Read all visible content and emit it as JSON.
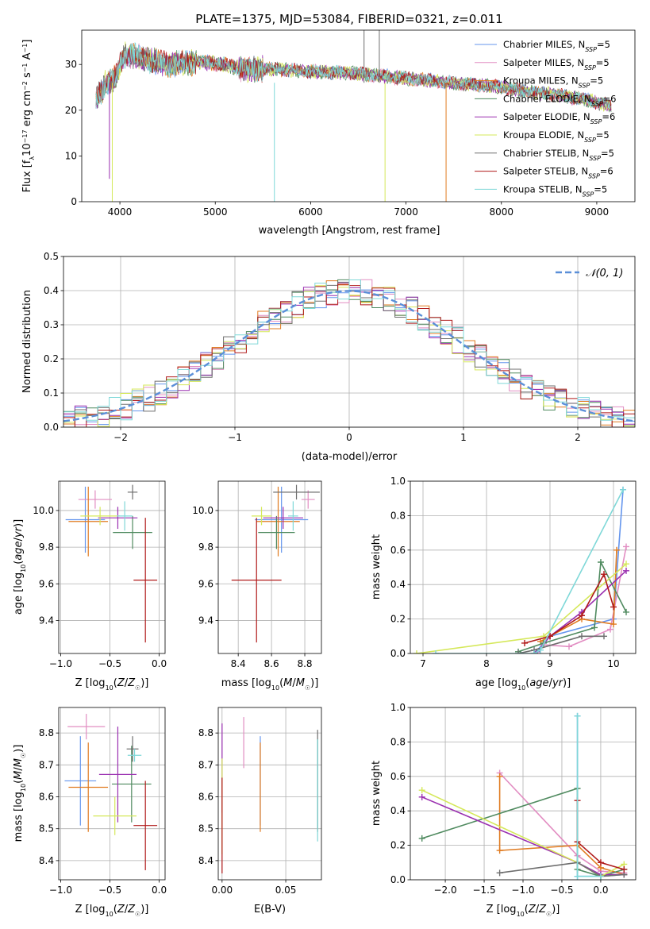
{
  "title": "PLATE=1375, MJD=53084, FIBERID=0321, z=0.011",
  "colors": {
    "Chabrier MILES": "#6495ed",
    "Salpeter MILES": "#e28dc2",
    "Kroupa MILES": "#e07b20",
    "Chabrier ELODIE": "#4f8a5f",
    "Salpeter ELODIE": "#9a2fb0",
    "Kroupa ELODIE": "#d5e85a",
    "Chabrier STELIB": "#6e6e6e",
    "Salpeter STELIB": "#b01a1a",
    "Kroupa STELIB": "#7fd8d8"
  },
  "chart_data": [
    {
      "id": "spectrum",
      "type": "line",
      "title": "PLATE=1375, MJD=53084, FIBERID=0321, z=0.011",
      "xlabel": "wavelength [Angstrom, rest frame]",
      "ylabel": "Flux [f_λ 10^-17 erg cm^-2 s^-1 A^-1]",
      "xlim": [
        3600,
        9400
      ],
      "ylim": [
        0,
        37.5
      ],
      "xticks": [
        4000,
        5000,
        6000,
        7000,
        8000,
        9000
      ],
      "yticks": [
        0,
        10,
        20,
        30
      ],
      "grid": false,
      "legend_position": "top-right",
      "legend": [
        "Chabrier MILES, N_SSP=5",
        "Salpeter MILES, N_SSP=5",
        "Kroupa MILES, N_SSP=5",
        "Chabrier ELODIE, N_SSP=6",
        "Salpeter ELODIE, N_SSP=6",
        "Kroupa ELODIE, N_SSP=5",
        "Chabrier STELIB, N_SSP=5",
        "Salpeter STELIB, N_SSP=6",
        "Kroupa STELIB, N_SSP=5"
      ],
      "continuum": {
        "x": [
          3750,
          3850,
          3950,
          4050,
          4150,
          4300,
          4500,
          4700,
          4900,
          5100,
          5300,
          5600,
          6000,
          6500,
          7000,
          7500,
          8000,
          8300,
          8600,
          8900,
          9150
        ],
        "y": [
          22,
          26,
          27,
          32,
          32,
          31,
          30,
          30.5,
          30.5,
          30,
          29,
          29,
          28.5,
          28,
          27,
          26,
          25,
          24,
          23.5,
          23,
          22
        ]
      }
    },
    {
      "id": "residuals",
      "type": "step",
      "xlabel": "(data-model)/error",
      "ylabel": "Normed distribution",
      "xlim": [
        -2.5,
        2.5
      ],
      "ylim": [
        0,
        0.5
      ],
      "xticks": [
        -2,
        -1,
        0,
        1,
        2
      ],
      "yticks": [
        0.0,
        0.1,
        0.2,
        0.3,
        0.4,
        0.5
      ],
      "grid": true,
      "legend_position": "top-right",
      "legend": [
        "𝒩(0, 1)"
      ],
      "reference": "normal(0,1)"
    },
    {
      "id": "age_vs_Z",
      "type": "errorbar",
      "xlabel": "Z [log10(Z/Z☉)]",
      "ylabel": "age [log10(age/yr)]",
      "xlim": [
        -1.02,
        0.06
      ],
      "ylim": [
        9.22,
        10.16
      ],
      "xticks": [
        -1.0,
        -0.5,
        0.0
      ],
      "yticks": [
        9.4,
        9.6,
        9.8,
        10.0
      ],
      "grid": true,
      "points": [
        {
          "model": "Chabrier MILES",
          "x": -0.75,
          "xerr": 0.2,
          "y": 9.95,
          "yerr": 0.18
        },
        {
          "model": "Salpeter MILES",
          "x": -0.65,
          "xerr": 0.17,
          "y": 10.06,
          "yerr": 0.05
        },
        {
          "model": "Kroupa MILES",
          "x": -0.72,
          "xerr": 0.2,
          "y": 9.94,
          "yerr": 0.19
        },
        {
          "model": "Chabrier ELODIE",
          "x": -0.27,
          "xerr": 0.2,
          "y": 9.88,
          "yerr": 0.09
        },
        {
          "model": "Salpeter ELODIE",
          "x": -0.42,
          "xerr": 0.2,
          "y": 9.96,
          "yerr": 0.06
        },
        {
          "model": "Kroupa ELODIE",
          "x": -0.6,
          "xerr": 0.2,
          "y": 9.97,
          "yerr": 0.05
        },
        {
          "model": "Chabrier STELIB",
          "x": -0.27,
          "xerr": 0.05,
          "y": 10.1,
          "yerr": 0.04
        },
        {
          "model": "Salpeter STELIB",
          "x": -0.14,
          "xerr": 0.12,
          "y": 9.62,
          "yerr": 0.34
        },
        {
          "model": "Kroupa STELIB",
          "x": -0.35,
          "xerr": 0.08,
          "y": 9.97,
          "yerr": 0.08
        }
      ]
    },
    {
      "id": "age_vs_mass",
      "type": "errorbar",
      "xlabel": "mass [log10(M/M☉)]",
      "ylabel": "",
      "xlim": [
        8.28,
        8.9
      ],
      "ylim": [
        9.22,
        10.16
      ],
      "xticks": [
        8.4,
        8.6,
        8.8
      ],
      "yticks": [
        9.4,
        9.6,
        9.8,
        10.0
      ],
      "grid": true,
      "points": [
        {
          "model": "Chabrier MILES",
          "x": 8.66,
          "xerr": 0.16,
          "y": 9.95,
          "yerr": 0.18
        },
        {
          "model": "Salpeter MILES",
          "x": 8.82,
          "xerr": 0.04,
          "y": 10.06,
          "yerr": 0.05
        },
        {
          "model": "Kroupa MILES",
          "x": 8.64,
          "xerr": 0.13,
          "y": 9.94,
          "yerr": 0.19
        },
        {
          "model": "Chabrier ELODIE",
          "x": 8.63,
          "xerr": 0.11,
          "y": 9.88,
          "yerr": 0.09
        },
        {
          "model": "Salpeter ELODIE",
          "x": 8.67,
          "xerr": 0.12,
          "y": 9.96,
          "yerr": 0.06
        },
        {
          "model": "Kroupa ELODIE",
          "x": 8.54,
          "xerr": 0.06,
          "y": 9.97,
          "yerr": 0.05
        },
        {
          "model": "Chabrier STELIB",
          "x": 8.75,
          "xerr": 0.14,
          "y": 10.1,
          "yerr": 0.04
        },
        {
          "model": "Salpeter STELIB",
          "x": 8.51,
          "xerr": 0.15,
          "y": 9.62,
          "yerr": 0.34
        },
        {
          "model": "Kroupa STELIB",
          "x": 8.73,
          "xerr": 0.03,
          "y": 9.97,
          "yerr": 0.08
        }
      ]
    },
    {
      "id": "weight_vs_age",
      "type": "line",
      "xlabel": "age [log10(age/yr)]",
      "ylabel": "mass weight",
      "xlim": [
        6.8,
        10.35
      ],
      "ylim": [
        0,
        1.0
      ],
      "xticks": [
        7,
        8,
        9,
        10
      ],
      "yticks": [
        0.0,
        0.2,
        0.4,
        0.6,
        0.8,
        1.0
      ],
      "grid": true,
      "series": [
        {
          "model": "Chabrier MILES",
          "x": [
            8.75,
            9.0,
            10.0,
            10.15
          ],
          "y": [
            0.0,
            0.1,
            0.2,
            0.95
          ]
        },
        {
          "model": "Salpeter MILES",
          "x": [
            8.9,
            9.3,
            9.95,
            10.2
          ],
          "y": [
            0.05,
            0.04,
            0.14,
            0.62
          ]
        },
        {
          "model": "Kroupa MILES",
          "x": [
            8.85,
            9.0,
            9.5,
            10.0,
            10.05
          ],
          "y": [
            0.07,
            0.1,
            0.2,
            0.17,
            0.6
          ]
        },
        {
          "model": "Chabrier ELODIE",
          "x": [
            8.5,
            8.9,
            9.7,
            9.8,
            10.2
          ],
          "y": [
            0.01,
            0.06,
            0.15,
            0.53,
            0.24
          ]
        },
        {
          "model": "Salpeter ELODIE",
          "x": [
            8.8,
            9.0,
            9.5,
            10.2
          ],
          "y": [
            0.01,
            0.1,
            0.24,
            0.48
          ]
        },
        {
          "model": "Kroupa ELODIE",
          "x": [
            6.9,
            8.9,
            10.2
          ],
          "y": [
            0.0,
            0.1,
            0.52
          ]
        },
        {
          "model": "Chabrier STELIB",
          "x": [
            8.5,
            8.75,
            9.5,
            9.85
          ],
          "y": [
            0.0,
            0.02,
            0.1,
            0.1
          ]
        },
        {
          "model": "Salpeter STELIB",
          "x": [
            8.6,
            9.0,
            9.5,
            9.85,
            10.0
          ],
          "y": [
            0.06,
            0.1,
            0.22,
            0.46,
            0.27
          ]
        },
        {
          "model": "Kroupa STELIB",
          "x": [
            7.2,
            8.75,
            8.85,
            10.15
          ],
          "y": [
            0.0,
            0.0,
            0.02,
            0.95
          ]
        }
      ]
    },
    {
      "id": "mass_vs_Z",
      "type": "errorbar",
      "xlabel": "Z [log10(Z/Z☉)]",
      "ylabel": "mass [log10(M/M☉)]",
      "xlim": [
        -1.02,
        0.06
      ],
      "ylim": [
        8.34,
        8.88
      ],
      "xticks": [
        -1.0,
        -0.5,
        0.0
      ],
      "yticks": [
        8.4,
        8.5,
        8.6,
        8.7,
        8.8
      ],
      "grid": true,
      "points": [
        {
          "model": "Chabrier MILES",
          "x": -0.8,
          "xerr": 0.16,
          "y": 8.65,
          "yerr": 0.14
        },
        {
          "model": "Salpeter MILES",
          "x": -0.74,
          "xerr": 0.19,
          "y": 8.82,
          "yerr": 0.04
        },
        {
          "model": "Kroupa MILES",
          "x": -0.72,
          "xerr": 0.2,
          "y": 8.63,
          "yerr": 0.14
        },
        {
          "model": "Chabrier ELODIE",
          "x": -0.28,
          "xerr": 0.2,
          "y": 8.64,
          "yerr": 0.12
        },
        {
          "model": "Salpeter ELODIE",
          "x": -0.42,
          "xerr": 0.19,
          "y": 8.67,
          "yerr": 0.15
        },
        {
          "model": "Kroupa ELODIE",
          "x": -0.45,
          "xerr": 0.22,
          "y": 8.54,
          "yerr": 0.06
        },
        {
          "model": "Chabrier STELIB",
          "x": -0.27,
          "xerr": 0.06,
          "y": 8.75,
          "yerr": 0.04
        },
        {
          "model": "Salpeter STELIB",
          "x": -0.14,
          "xerr": 0.12,
          "y": 8.51,
          "yerr": 0.14
        },
        {
          "model": "Kroupa STELIB",
          "x": -0.25,
          "xerr": 0.07,
          "y": 8.73,
          "yerr": 0.02
        }
      ]
    },
    {
      "id": "mass_vs_ebv",
      "type": "errorbar",
      "xlabel": "E(B-V)",
      "ylabel": "",
      "xlim": [
        -0.003,
        0.078
      ],
      "ylim": [
        8.34,
        8.88
      ],
      "xticks": [
        0.0,
        0.05
      ],
      "yticks": [
        8.4,
        8.5,
        8.6,
        8.7,
        8.8
      ],
      "grid": true,
      "points": [
        {
          "model": "Chabrier MILES",
          "x": 0.03,
          "y": 8.65,
          "yerr": 0.14
        },
        {
          "model": "Salpeter MILES",
          "x": 0.017,
          "y": 8.77,
          "yerr": 0.08
        },
        {
          "model": "Kroupa MILES",
          "x": 0.03,
          "y": 8.63,
          "yerr": 0.14
        },
        {
          "model": "Chabrier ELODIE",
          "x": 0.075,
          "y": 8.64,
          "yerr": 0.14
        },
        {
          "model": "Salpeter ELODIE",
          "x": 0.0,
          "y": 8.69,
          "yerr": 0.14
        },
        {
          "model": "Kroupa ELODIE",
          "x": 0.0,
          "y": 8.57,
          "yerr": 0.15
        },
        {
          "model": "Chabrier STELIB",
          "x": 0.075,
          "y": 8.65,
          "yerr": 0.16
        },
        {
          "model": "Salpeter STELIB",
          "x": 0.0,
          "y": 8.51,
          "yerr": 0.15
        },
        {
          "model": "Kroupa STELIB",
          "x": 0.075,
          "y": 8.62,
          "yerr": 0.16
        }
      ]
    },
    {
      "id": "weight_vs_Z",
      "type": "line",
      "xlabel": "Z [log10(Z/Z☉)]",
      "ylabel": "mass weight",
      "xlim": [
        -2.45,
        0.45
      ],
      "ylim": [
        0,
        1.0
      ],
      "xticks": [
        -2.0,
        -1.5,
        -1.0,
        -0.5,
        0.0
      ],
      "yticks": [
        0.0,
        0.2,
        0.4,
        0.6,
        0.8,
        1.0
      ],
      "grid": true,
      "series": [
        {
          "model": "Chabrier MILES",
          "x": [
            -0.3,
            -0.3,
            0.0,
            0.3
          ],
          "y": [
            0.95,
            0.02,
            0.02,
            0.03
          ]
        },
        {
          "model": "Salpeter MILES",
          "x": [
            -1.3,
            -0.3,
            0.0,
            0.3
          ],
          "y": [
            0.62,
            0.14,
            0.05,
            0.04
          ]
        },
        {
          "model": "Kroupa MILES",
          "x": [
            -1.3,
            -1.3,
            -0.3,
            0.0,
            0.3
          ],
          "y": [
            0.6,
            0.17,
            0.2,
            0.07,
            0.03
          ]
        },
        {
          "model": "Chabrier ELODIE",
          "x": [
            -2.3,
            -0.3,
            -0.3,
            0.0,
            0.3
          ],
          "y": [
            0.24,
            0.53,
            0.06,
            0.02,
            0.06
          ]
        },
        {
          "model": "Salpeter ELODIE",
          "x": [
            -2.3,
            -0.3,
            0.0,
            0.3
          ],
          "y": [
            0.48,
            0.1,
            0.03,
            0.03
          ]
        },
        {
          "model": "Kroupa ELODIE",
          "x": [
            -2.3,
            -0.3,
            0.0,
            0.3
          ],
          "y": [
            0.52,
            0.1,
            0.02,
            0.09
          ]
        },
        {
          "model": "Chabrier STELIB",
          "x": [
            -1.3,
            -0.3,
            0.0,
            0.3
          ],
          "y": [
            0.04,
            0.1,
            0.02,
            0.03
          ]
        },
        {
          "model": "Salpeter STELIB",
          "x": [
            -0.3,
            -0.3,
            0.0,
            0.3
          ],
          "y": [
            0.46,
            0.22,
            0.1,
            0.06
          ]
        },
        {
          "model": "Kroupa STELIB",
          "x": [
            -0.3,
            -0.3,
            0.0
          ],
          "y": [
            0.95,
            0.02,
            0.02
          ]
        }
      ]
    }
  ]
}
